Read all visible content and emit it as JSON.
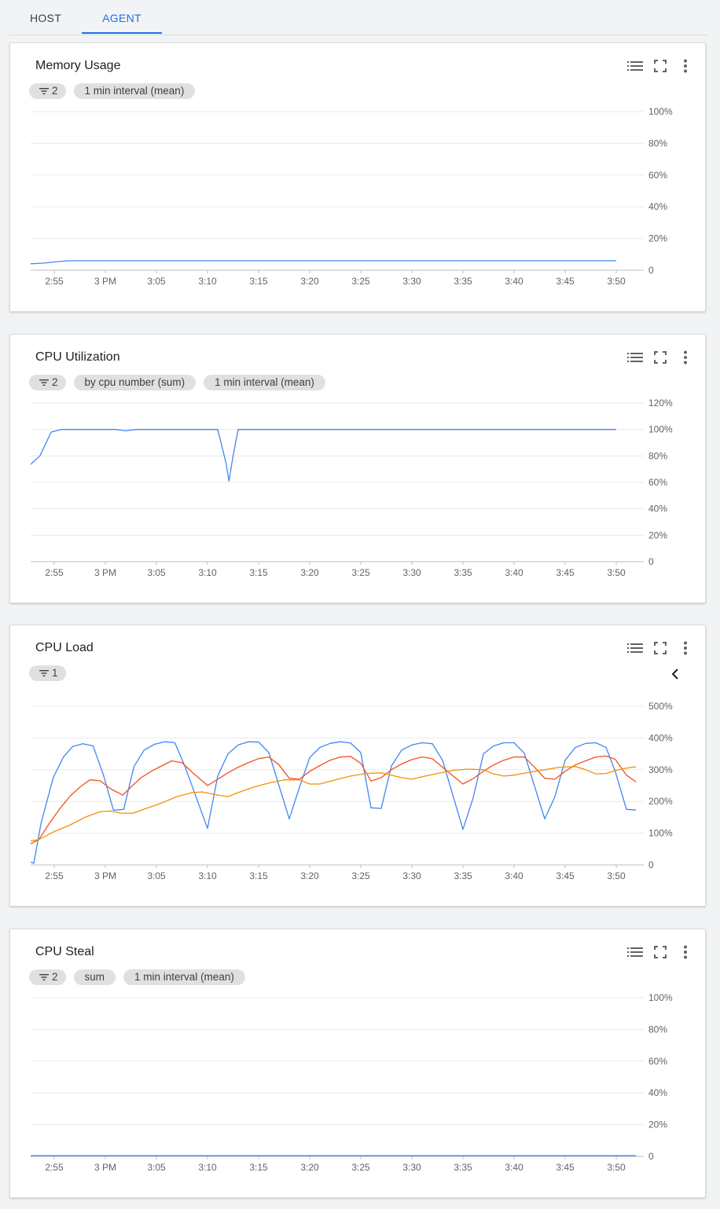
{
  "tabs": [
    {
      "label": "HOST",
      "active": false
    },
    {
      "label": "AGENT",
      "active": true
    }
  ],
  "icons": {
    "legend": "list-icon",
    "fullscreen": "fullscreen-icon",
    "more": "more-vert-icon",
    "filter": "filter-icon",
    "collapse": "chevron-left-icon"
  },
  "colors": {
    "blue": "#4285f4",
    "red": "#f4511e",
    "orange": "#f09300",
    "accent": "#1a73e8"
  },
  "x_ticks": [
    "2:55",
    "3 PM",
    "3:05",
    "3:10",
    "3:15",
    "3:20",
    "3:25",
    "3:30",
    "3:35",
    "3:40",
    "3:45",
    "3:50"
  ],
  "cards": [
    {
      "title": "Memory Usage",
      "chips": [
        {
          "filter": true,
          "label": "2"
        },
        {
          "filter": false,
          "label": "1 min interval (mean)"
        }
      ],
      "chart_data": {
        "type": "line",
        "x_unit": "minutes past 2:50 PM",
        "y_ticks": [
          "100%",
          "80%",
          "60%",
          "40%",
          "20%",
          "0"
        ],
        "ylim": [
          0,
          100
        ],
        "series": [
          {
            "color": "#4285f4",
            "points": [
              [
                2.6,
                4
              ],
              [
                4,
                4.5
              ],
              [
                5.5,
                5.5
              ],
              [
                6.5,
                6
              ],
              [
                60,
                6
              ]
            ]
          }
        ]
      }
    },
    {
      "title": "CPU Utilization",
      "chips": [
        {
          "filter": true,
          "label": "2"
        },
        {
          "filter": false,
          "label": "by cpu number (sum)"
        },
        {
          "filter": false,
          "label": "1 min interval (mean)"
        }
      ],
      "chart_data": {
        "type": "line",
        "x_unit": "minutes past 2:50 PM",
        "y_ticks": [
          "120%",
          "100%",
          "80%",
          "60%",
          "40%",
          "20%",
          "0"
        ],
        "ylim": [
          0,
          120
        ],
        "series": [
          {
            "color": "#4285f4",
            "points": [
              [
                2.6,
                73
              ],
              [
                3.6,
                80
              ],
              [
                4.7,
                98
              ],
              [
                5.7,
                100
              ],
              [
                11,
                100
              ],
              [
                12,
                99
              ],
              [
                13,
                100
              ],
              [
                21,
                100
              ],
              [
                21.8,
                75
              ],
              [
                22.1,
                61
              ],
              [
                22.5,
                80
              ],
              [
                23,
                100
              ],
              [
                60,
                100
              ]
            ]
          }
        ]
      }
    },
    {
      "title": "CPU Load",
      "chips": [
        {
          "filter": true,
          "label": "1"
        }
      ],
      "collapse": true,
      "chart_data": {
        "type": "line",
        "x_unit": "minutes past 2:50 PM",
        "y_ticks": [
          "500%",
          "400%",
          "300%",
          "200%",
          "100%",
          "0"
        ],
        "ylim": [
          0,
          500
        ],
        "series": [
          {
            "color": "#4285f4",
            "points": [
              [
                2.6,
                10
              ],
              [
                3,
                5
              ],
              [
                3.7,
                130
              ],
              [
                4.9,
                275
              ],
              [
                5.9,
                340
              ],
              [
                6.8,
                373
              ],
              [
                7.8,
                382
              ],
              [
                8.8,
                375
              ],
              [
                9.8,
                285
              ],
              [
                10.8,
                172
              ],
              [
                11.8,
                175
              ],
              [
                12.8,
                310
              ],
              [
                13.8,
                362
              ],
              [
                14.8,
                380
              ],
              [
                15.8,
                388
              ],
              [
                16.8,
                385
              ],
              [
                17.8,
                310
              ],
              [
                20,
                115
              ],
              [
                21,
                280
              ],
              [
                22,
                350
              ],
              [
                23,
                378
              ],
              [
                24,
                388
              ],
              [
                25,
                387
              ],
              [
                26,
                354
              ],
              [
                28,
                145
              ],
              [
                29,
                245
              ],
              [
                30,
                338
              ],
              [
                31,
                370
              ],
              [
                32,
                383
              ],
              [
                33,
                388
              ],
              [
                34,
                384
              ],
              [
                35,
                354
              ],
              [
                36,
                180
              ],
              [
                37,
                178
              ],
              [
                38,
                312
              ],
              [
                39,
                362
              ],
              [
                40,
                378
              ],
              [
                41,
                385
              ],
              [
                42,
                382
              ],
              [
                43,
                330
              ],
              [
                45,
                112
              ],
              [
                46,
                212
              ],
              [
                47,
                350
              ],
              [
                48,
                375
              ],
              [
                49,
                385
              ],
              [
                50,
                385
              ],
              [
                51,
                352
              ],
              [
                53,
                145
              ],
              [
                54,
                215
              ],
              [
                55,
                330
              ],
              [
                56,
                370
              ],
              [
                57,
                383
              ],
              [
                58,
                385
              ],
              [
                59,
                370
              ],
              [
                59.9,
                295
              ],
              [
                61,
                175
              ],
              [
                62,
                173
              ]
            ]
          },
          {
            "color": "#f4511e",
            "points": [
              [
                2.6,
                65
              ],
              [
                3.5,
                80
              ],
              [
                4.5,
                130
              ],
              [
                5.5,
                175
              ],
              [
                6.5,
                215
              ],
              [
                7.5,
                245
              ],
              [
                8.5,
                268
              ],
              [
                9.5,
                265
              ],
              [
                10.5,
                240
              ],
              [
                11.7,
                220
              ],
              [
                12.5,
                245
              ],
              [
                13.5,
                275
              ],
              [
                14.5,
                295
              ],
              [
                15.5,
                312
              ],
              [
                16.5,
                328
              ],
              [
                17.5,
                322
              ],
              [
                18.5,
                292
              ],
              [
                20,
                250
              ],
              [
                21,
                270
              ],
              [
                22,
                290
              ],
              [
                23,
                308
              ],
              [
                24,
                322
              ],
              [
                25,
                335
              ],
              [
                26,
                340
              ],
              [
                27,
                315
              ],
              [
                28,
                273
              ],
              [
                29,
                270
              ],
              [
                30,
                295
              ],
              [
                31,
                313
              ],
              [
                32,
                330
              ],
              [
                33,
                340
              ],
              [
                34,
                342
              ],
              [
                35,
                320
              ],
              [
                36,
                264
              ],
              [
                37,
                275
              ],
              [
                38,
                300
              ],
              [
                39,
                318
              ],
              [
                40,
                332
              ],
              [
                41,
                340
              ],
              [
                42,
                335
              ],
              [
                43,
                308
              ],
              [
                45,
                255
              ],
              [
                46,
                272
              ],
              [
                47,
                295
              ],
              [
                48,
                315
              ],
              [
                49,
                330
              ],
              [
                50,
                340
              ],
              [
                51,
                340
              ],
              [
                52,
                308
              ],
              [
                53,
                273
              ],
              [
                54,
                270
              ],
              [
                55,
                295
              ],
              [
                56,
                315
              ],
              [
                57,
                328
              ],
              [
                58,
                340
              ],
              [
                59,
                343
              ],
              [
                59.9,
                333
              ],
              [
                61,
                283
              ],
              [
                62,
                260
              ]
            ]
          },
          {
            "color": "#f09300",
            "points": [
              [
                2.6,
                75
              ],
              [
                3.5,
                80
              ],
              [
                5,
                105
              ],
              [
                6.5,
                125
              ],
              [
                8,
                150
              ],
              [
                9.5,
                168
              ],
              [
                10.5,
                170
              ],
              [
                11.5,
                163
              ],
              [
                12.7,
                163
              ],
              [
                14,
                178
              ],
              [
                15.5,
                195
              ],
              [
                17,
                215
              ],
              [
                18.5,
                228
              ],
              [
                19.5,
                230
              ],
              [
                21,
                220
              ],
              [
                22,
                215
              ],
              [
                23,
                228
              ],
              [
                24.5,
                245
              ],
              [
                26,
                258
              ],
              [
                27.5,
                268
              ],
              [
                29,
                268
              ],
              [
                30,
                255
              ],
              [
                31,
                255
              ],
              [
                32.5,
                268
              ],
              [
                34,
                280
              ],
              [
                35.5,
                288
              ],
              [
                37,
                290
              ],
              [
                38,
                283
              ],
              [
                39,
                275
              ],
              [
                40,
                270
              ],
              [
                41,
                278
              ],
              [
                42.5,
                288
              ],
              [
                44,
                298
              ],
              [
                45.5,
                302
              ],
              [
                47,
                300
              ],
              [
                48,
                287
              ],
              [
                49,
                280
              ],
              [
                50,
                283
              ],
              [
                51.5,
                292
              ],
              [
                53,
                300
              ],
              [
                54.5,
                308
              ],
              [
                56,
                310
              ],
              [
                57,
                300
              ],
              [
                58,
                287
              ],
              [
                59,
                288
              ],
              [
                60,
                298
              ],
              [
                61,
                305
              ],
              [
                62.5,
                312
              ],
              [
                64,
                310
              ],
              [
                65,
                298
              ],
              [
                66,
                290
              ]
            ]
          }
        ]
      }
    },
    {
      "title": "CPU Steal",
      "chips": [
        {
          "filter": true,
          "label": "2"
        },
        {
          "filter": false,
          "label": "sum"
        },
        {
          "filter": false,
          "label": "1 min interval (mean)"
        }
      ],
      "chart_data": {
        "type": "line",
        "x_unit": "minutes past 2:50 PM",
        "y_ticks": [
          "100%",
          "80%",
          "60%",
          "40%",
          "20%",
          "0"
        ],
        "ylim": [
          0,
          100
        ],
        "series": [
          {
            "color": "#4285f4",
            "points": [
              [
                2.6,
                0.4
              ],
              [
                62,
                0.4
              ]
            ]
          }
        ]
      }
    }
  ]
}
